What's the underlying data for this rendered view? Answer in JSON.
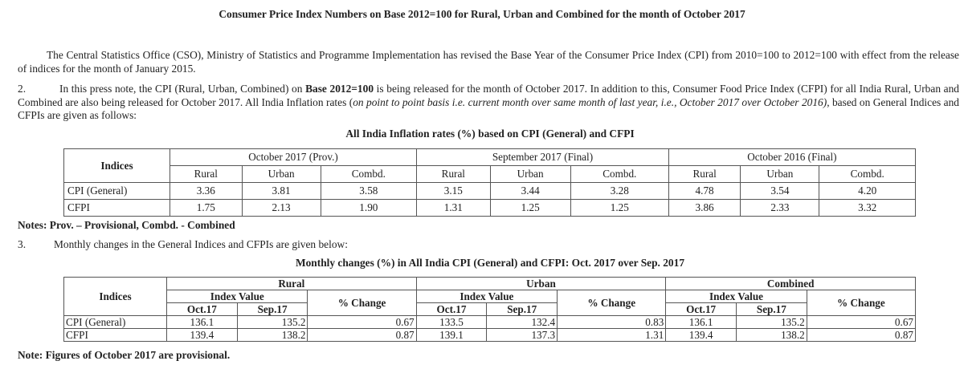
{
  "title": "Consumer Price Index Numbers on Base 2012=100 for Rural, Urban and Combined for the month of October 2017",
  "para1": "The Central Statistics Office (CSO), Ministry of Statistics and Programme Implementation has revised the Base Year of the Consumer Price Index (CPI) from 2010=100 to 2012=100 with effect from the release of indices for the month of January 2015.",
  "para2": {
    "num": "2.",
    "t1": "In this press note, the CPI (Rural, Urban, Combined) on ",
    "bold": "Base 2012=100",
    "t2": " is being released for the month of October 2017. In addition to this, Consumer Food Price Index (CFPI) for all India Rural, Urban and Combined are also being released for October 2017. All India Inflation rates (",
    "italic": "on point to point basis i.e. current month over same month of last year, i.e., October 2017 over October 2016)",
    "t3": ", based on General Indices and CFPIs are given as follows:"
  },
  "table1": {
    "title": "All India Inflation rates (%) based on CPI (General) and CFPI",
    "indices_label": "Indices",
    "periods": [
      "October 2017 (Prov.)",
      "September 2017 (Final)",
      "October 2016 (Final)"
    ],
    "subheads": [
      "Rural",
      "Urban",
      "Combd."
    ],
    "rows": [
      {
        "label": "CPI (General)",
        "values": [
          "3.36",
          "3.81",
          "3.58",
          "3.15",
          "3.44",
          "3.28",
          "4.78",
          "3.54",
          "4.20"
        ]
      },
      {
        "label": "CFPI",
        "values": [
          "1.75",
          "2.13",
          "1.90",
          "1.31",
          "1.25",
          "1.25",
          "3.86",
          "2.33",
          "3.32"
        ]
      }
    ]
  },
  "notes1": "Notes: Prov.  – Provisional, Combd. - Combined",
  "section3": {
    "num": "3.",
    "text": "Monthly changes in the General Indices and CFPIs are given below:"
  },
  "table2": {
    "title": "Monthly changes (%) in All India CPI (General) and CFPI: Oct. 2017 over Sep. 2017",
    "indices_label": "Indices",
    "groups": [
      "Rural",
      "Urban",
      "Combined"
    ],
    "index_value_label": "Index Value",
    "change_label": "% Change",
    "months": [
      "Oct.17",
      "Sep.17"
    ],
    "rows": [
      {
        "label": "CPI (General)",
        "values": [
          "136.1",
          "135.2",
          "0.67",
          "133.5",
          "132.4",
          "0.83",
          "136.1",
          "135.2",
          "0.67"
        ]
      },
      {
        "label": "CFPI",
        "values": [
          "139.4",
          "138.2",
          "0.87",
          "139.1",
          "137.3",
          "1.31",
          "139.4",
          "138.2",
          "0.87"
        ]
      }
    ]
  },
  "notes2": "Note: Figures of October 2017 are provisional."
}
